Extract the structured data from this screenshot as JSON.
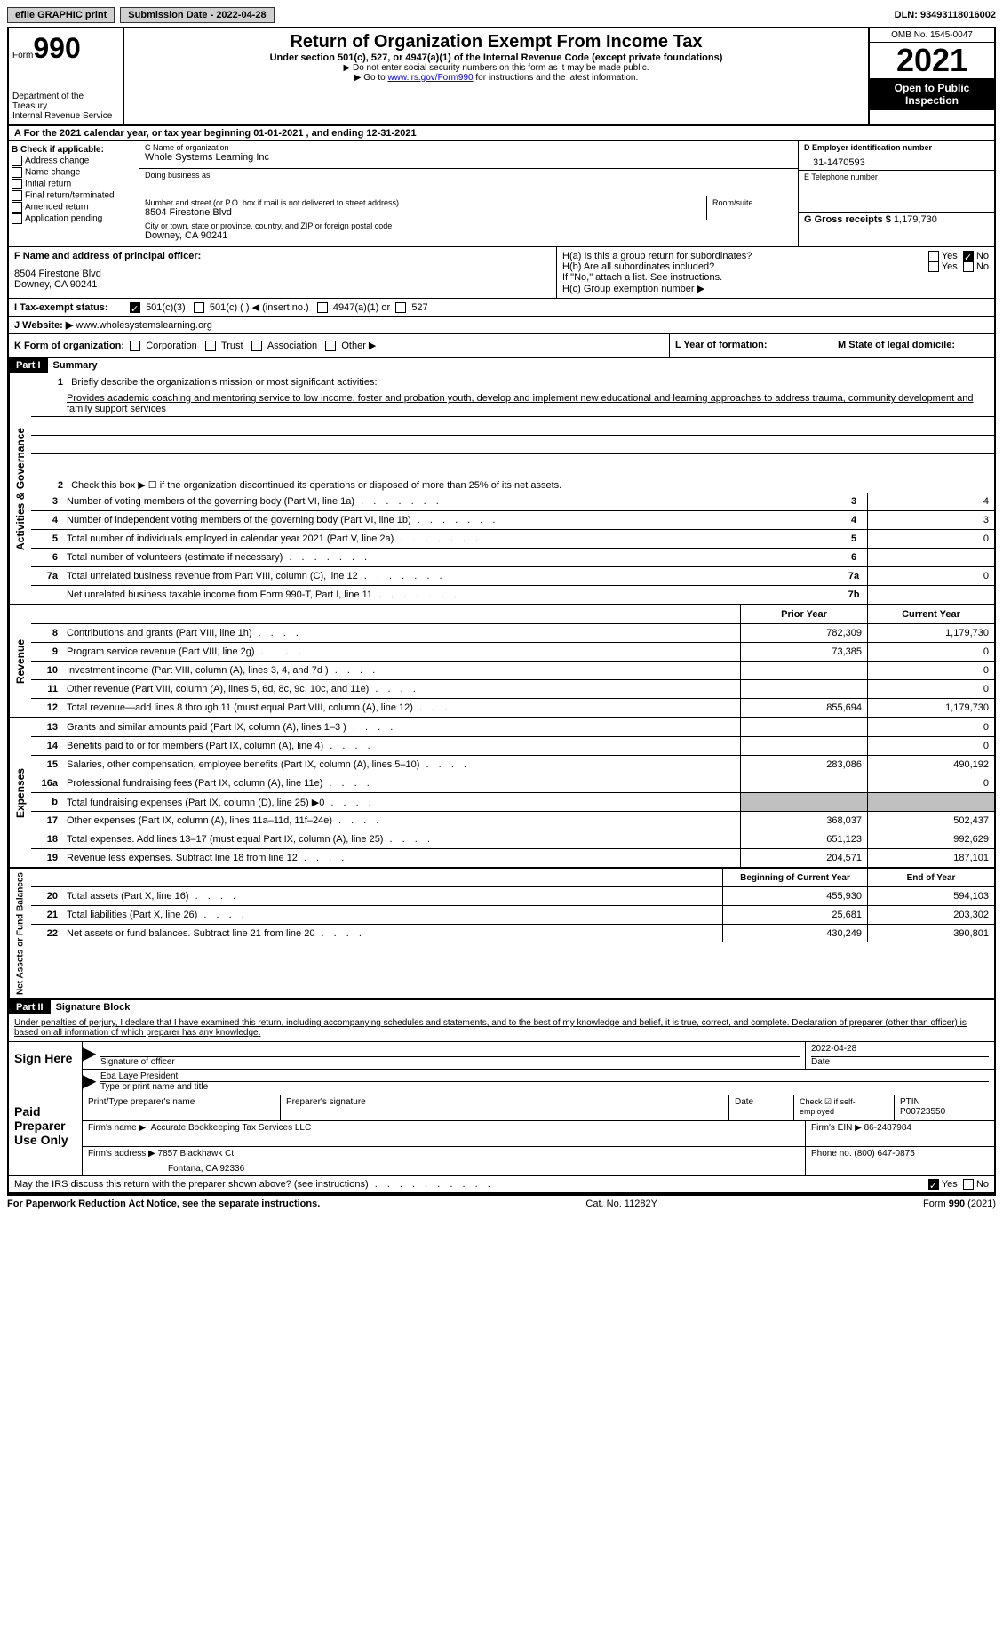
{
  "top_bar": {
    "efile": "efile GRAPHIC print",
    "submission": "Submission Date - 2022-04-28",
    "dln": "DLN: 93493118016002"
  },
  "header": {
    "form_word": "Form",
    "form_number": "990",
    "dept": "Department of the Treasury",
    "irs": "Internal Revenue Service",
    "title": "Return of Organization Exempt From Income Tax",
    "sub": "Under section 501(c), 527, or 4947(a)(1) of the Internal Revenue Code (except private foundations)",
    "note1": "▶ Do not enter social security numbers on this form as it may be made public.",
    "note2_pre": "▶ Go to ",
    "note2_link": "www.irs.gov/Form990",
    "note2_post": " for instructions and the latest information.",
    "omb": "OMB No. 1545-0047",
    "year": "2021",
    "inspection": "Open to Public Inspection"
  },
  "period": {
    "text": "A For the 2021 calendar year, or tax year beginning 01-01-2021   , and ending 12-31-2021"
  },
  "block_b": {
    "title": "B Check if applicable:",
    "chk_address": "Address change",
    "chk_name": "Name change",
    "chk_initial": "Initial return",
    "chk_final": "Final return/terminated",
    "chk_amended": "Amended return",
    "chk_app": "Application pending"
  },
  "block_c": {
    "label_name": "C Name of organization",
    "org_name": "Whole Systems Learning Inc",
    "label_dba": "Doing business as",
    "label_street": "Number and street (or P.O. box if mail is not delivered to street address)",
    "street": "8504 Firestone Blvd",
    "label_room": "Room/suite",
    "label_city": "City or town, state or province, country, and ZIP or foreign postal code",
    "city": "Downey, CA  90241"
  },
  "block_d": {
    "label": "D Employer identification number",
    "ein": "31-1470593",
    "label_e": "E Telephone number",
    "label_g": "G Gross receipts $",
    "gross": "1,179,730"
  },
  "block_f": {
    "label": "F Name and address of principal officer:",
    "addr1": "8504 Firestone Blvd",
    "addr2": "Downey, CA  90241"
  },
  "block_h": {
    "ha": "H(a)  Is this a group return for subordinates?",
    "ha_no_checked": "No",
    "hb": "H(b)  Are all subordinates included?",
    "hb_note": "If \"No,\" attach a list. See instructions.",
    "hc": "H(c)  Group exemption number ▶",
    "yes": "Yes",
    "no": "No"
  },
  "block_i": {
    "label": "I  Tax-exempt status:",
    "c3": "501(c)(3)",
    "c_other": "501(c) (  ) ◀ (insert no.)",
    "a4947": "4947(a)(1) or",
    "s527": "527"
  },
  "block_j": {
    "label": "J  Website: ▶",
    "url": "www.wholesystemslearning.org"
  },
  "block_k": {
    "label": "K Form of organization:",
    "corp": "Corporation",
    "trust": "Trust",
    "assoc": "Association",
    "other": "Other ▶"
  },
  "block_l": {
    "label": "L Year of formation:"
  },
  "block_m": {
    "label": "M State of legal domicile:"
  },
  "part1": {
    "tag": "Part I",
    "title": "Summary",
    "tab_activities": "Activities & Governance",
    "tab_revenue": "Revenue",
    "tab_expenses": "Expenses",
    "tab_net": "Net Assets or Fund Balances",
    "l1_label": "Briefly describe the organization's mission or most significant activities:",
    "l1_text": "Provides academic coaching and mentoring service to low income, foster and probation youth, develop and implement new educational and learning approaches to address trauma, community development and family support services",
    "l2": "Check this box ▶ ☐  if the organization discontinued its operations or disposed of more than 25% of its net assets.",
    "lines": [
      {
        "n": "3",
        "d": "Number of voting members of the governing body (Part VI, line 1a)",
        "box": "3",
        "v": "4"
      },
      {
        "n": "4",
        "d": "Number of independent voting members of the governing body (Part VI, line 1b)",
        "box": "4",
        "v": "3"
      },
      {
        "n": "5",
        "d": "Total number of individuals employed in calendar year 2021 (Part V, line 2a)",
        "box": "5",
        "v": "0"
      },
      {
        "n": "6",
        "d": "Total number of volunteers (estimate if necessary)",
        "box": "6",
        "v": ""
      },
      {
        "n": "7a",
        "d": "Total unrelated business revenue from Part VIII, column (C), line 12",
        "box": "7a",
        "v": "0"
      },
      {
        "n": "",
        "d": "Net unrelated business taxable income from Form 990-T, Part I, line 11",
        "box": "7b",
        "v": ""
      }
    ],
    "prior_hdr": "Prior Year",
    "current_hdr": "Current Year",
    "revenue_lines": [
      {
        "n": "8",
        "d": "Contributions and grants (Part VIII, line 1h)",
        "py": "782,309",
        "cy": "1,179,730"
      },
      {
        "n": "9",
        "d": "Program service revenue (Part VIII, line 2g)",
        "py": "73,385",
        "cy": "0"
      },
      {
        "n": "10",
        "d": "Investment income (Part VIII, column (A), lines 3, 4, and 7d )",
        "py": "",
        "cy": "0"
      },
      {
        "n": "11",
        "d": "Other revenue (Part VIII, column (A), lines 5, 6d, 8c, 9c, 10c, and 11e)",
        "py": "",
        "cy": "0"
      },
      {
        "n": "12",
        "d": "Total revenue—add lines 8 through 11 (must equal Part VIII, column (A), line 12)",
        "py": "855,694",
        "cy": "1,179,730"
      }
    ],
    "expense_lines": [
      {
        "n": "13",
        "d": "Grants and similar amounts paid (Part IX, column (A), lines 1–3 )",
        "py": "",
        "cy": "0"
      },
      {
        "n": "14",
        "d": "Benefits paid to or for members (Part IX, column (A), line 4)",
        "py": "",
        "cy": "0"
      },
      {
        "n": "15",
        "d": "Salaries, other compensation, employee benefits (Part IX, column (A), lines 5–10)",
        "py": "283,086",
        "cy": "490,192"
      },
      {
        "n": "16a",
        "d": "Professional fundraising fees (Part IX, column (A), line 11e)",
        "py": "",
        "cy": "0"
      },
      {
        "n": "b",
        "d": "Total fundraising expenses (Part IX, column (D), line 25) ▶0",
        "py": "",
        "cy": "",
        "shaded": true
      },
      {
        "n": "17",
        "d": "Other expenses (Part IX, column (A), lines 11a–11d, 11f–24e)",
        "py": "368,037",
        "cy": "502,437"
      },
      {
        "n": "18",
        "d": "Total expenses. Add lines 13–17 (must equal Part IX, column (A), line 25)",
        "py": "651,123",
        "cy": "992,629"
      },
      {
        "n": "19",
        "d": "Revenue less expenses. Subtract line 18 from line 12",
        "py": "204,571",
        "cy": "187,101"
      }
    ],
    "beg_hdr": "Beginning of Current Year",
    "end_hdr": "End of Year",
    "net_lines": [
      {
        "n": "20",
        "d": "Total assets (Part X, line 16)",
        "py": "455,930",
        "cy": "594,103"
      },
      {
        "n": "21",
        "d": "Total liabilities (Part X, line 26)",
        "py": "25,681",
        "cy": "203,302"
      },
      {
        "n": "22",
        "d": "Net assets or fund balances. Subtract line 21 from line 20",
        "py": "430,249",
        "cy": "390,801"
      }
    ]
  },
  "part2": {
    "tag": "Part II",
    "title": "Signature Block",
    "decl": "Under penalties of perjury, I declare that I have examined this return, including accompanying schedules and statements, and to the best of my knowledge and belief, it is true, correct, and complete. Declaration of preparer (other than officer) is based on all information of which preparer has any knowledge.",
    "sign_here": "Sign Here",
    "sig_officer": "Signature of officer",
    "sig_date": "2022-04-28",
    "sig_date_label": "Date",
    "officer_name": "Eba Laye  President",
    "officer_label": "Type or print name and title",
    "paid": "Paid Preparer Use Only",
    "prep_name_label": "Print/Type preparer's name",
    "prep_sig_label": "Preparer's signature",
    "prep_date_label": "Date",
    "self_emp": "Check ☑ if self-employed",
    "ptin_label": "PTIN",
    "ptin": "P00723550",
    "firm_name_label": "Firm's name    ▶",
    "firm_name": "Accurate Bookkeeping Tax Services LLC",
    "firm_ein_label": "Firm's EIN ▶",
    "firm_ein": "86-2487984",
    "firm_addr_label": "Firm's address ▶",
    "firm_addr": "7857 Blackhawk Ct",
    "firm_city": "Fontana, CA  92336",
    "phone_label": "Phone no.",
    "phone": "(800) 647-0875",
    "discuss": "May the IRS discuss this return with the preparer shown above? (see instructions)",
    "discuss_yes": "Yes",
    "discuss_no": "No"
  },
  "footer": {
    "left": "For Paperwork Reduction Act Notice, see the separate instructions.",
    "center": "Cat. No. 11282Y",
    "right": "Form 990 (2021)"
  }
}
